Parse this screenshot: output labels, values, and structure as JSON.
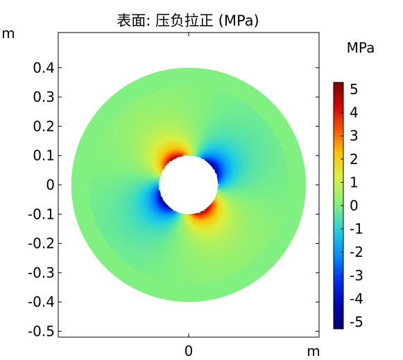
{
  "chart_data": {
    "type": "heatmap",
    "title": "表面: 压负拉正 (MPa)",
    "x_axis_unit": "m",
    "y_axis_unit": "m",
    "xlim": [
      -0.44,
      0.44
    ],
    "ylim": [
      -0.52,
      0.52
    ],
    "x_ticks": [
      {
        "value": 0,
        "label": "0"
      }
    ],
    "y_ticks": [
      {
        "value": 0.4,
        "label": "0.4"
      },
      {
        "value": 0.3,
        "label": "0.3"
      },
      {
        "value": 0.2,
        "label": "0.2"
      },
      {
        "value": 0.1,
        "label": "0.1"
      },
      {
        "value": 0,
        "label": "0"
      },
      {
        "value": -0.1,
        "label": "-0.1"
      },
      {
        "value": -0.2,
        "label": "-0.2"
      },
      {
        "value": -0.3,
        "label": "-0.3"
      },
      {
        "value": -0.4,
        "label": "-0.4"
      },
      {
        "value": -0.5,
        "label": "-0.5"
      }
    ],
    "domain": {
      "shape": "annulus",
      "outer_radius": 0.4,
      "inner_radius": 0.1
    },
    "extrema": [
      {
        "angle_deg": 120,
        "value": 5.3
      },
      {
        "angle_deg": -60,
        "value": 5.3
      },
      {
        "angle_deg": 35,
        "value": -5.2
      },
      {
        "angle_deg": 215,
        "value": -5.2
      }
    ],
    "colorbar": {
      "unit": "MPa",
      "colormap": "rainbow",
      "range": [
        -5.3,
        5.3
      ],
      "ticks": [
        {
          "value": 5,
          "label": "5"
        },
        {
          "value": 4,
          "label": "4"
        },
        {
          "value": 3,
          "label": "3"
        },
        {
          "value": 2,
          "label": "2"
        },
        {
          "value": 1,
          "label": "1"
        },
        {
          "value": 0,
          "label": "0"
        },
        {
          "value": -1,
          "label": "-1"
        },
        {
          "value": -2,
          "label": "-2"
        },
        {
          "value": -3,
          "label": "-3"
        },
        {
          "value": -4,
          "label": "-4"
        },
        {
          "value": -5,
          "label": "-5"
        }
      ],
      "stops": [
        {
          "value": 5.3,
          "color": "#7f0000"
        },
        {
          "value": 4.3,
          "color": "#d40000"
        },
        {
          "value": 3.2,
          "color": "#ff5a00"
        },
        {
          "value": 2.3,
          "color": "#ffc000"
        },
        {
          "value": 1.2,
          "color": "#d9f040"
        },
        {
          "value": 0.0,
          "color": "#80f080"
        },
        {
          "value": -1.1,
          "color": "#20d0e0"
        },
        {
          "value": -2.1,
          "color": "#0090ff"
        },
        {
          "value": -3.2,
          "color": "#0030f0"
        },
        {
          "value": -4.3,
          "color": "#0000b0"
        },
        {
          "value": -5.3,
          "color": "#00007a"
        }
      ]
    }
  }
}
